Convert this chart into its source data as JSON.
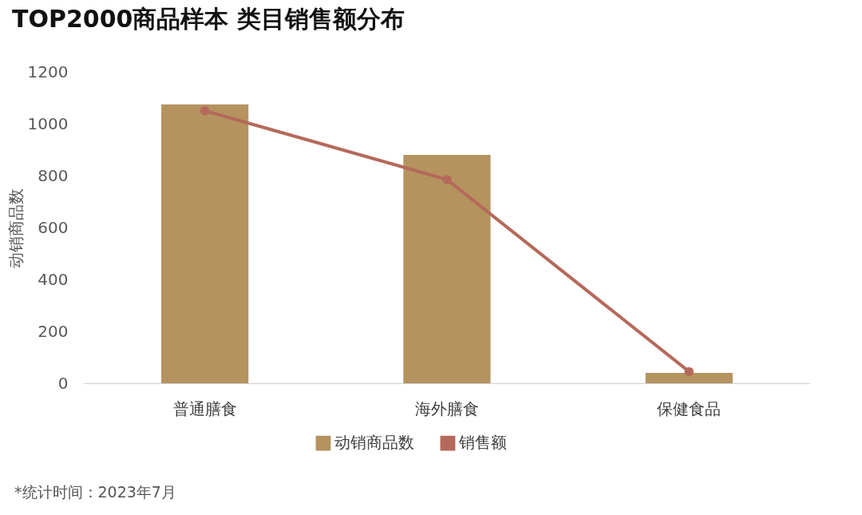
{
  "chart_data": {
    "type": "bar",
    "title": "TOP2000商品样本 类目销售额分布",
    "ylabel": "动销商品数",
    "categories": [
      "普通膳食",
      "海外膳食",
      "保健食品"
    ],
    "series": [
      {
        "name": "动销商品数",
        "color": "#b5935f",
        "values": [
          1075,
          880,
          40
        ]
      },
      {
        "name": "销售额",
        "type": "line",
        "color": "#b5695a",
        "values": [
          1050,
          785,
          45
        ]
      }
    ],
    "ylim": [
      0,
      1200
    ],
    "yticks": [
      0,
      200,
      400,
      600,
      800,
      1000,
      1200
    ],
    "grid": false,
    "legend": "bottom",
    "marker": "circle",
    "line_style": "solid",
    "annotations": [
      "*统计时间：2023年7月"
    ]
  }
}
